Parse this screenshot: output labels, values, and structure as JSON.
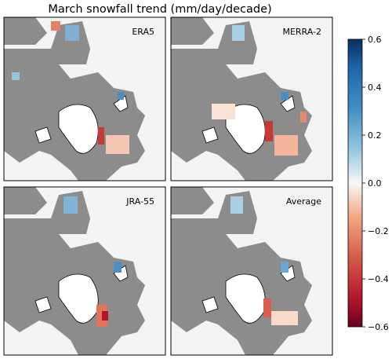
{
  "chart_data": {
    "type": "heatmap",
    "title": "March snowfall trend (mm/day/decade)",
    "panels": [
      {
        "label": "ERA5"
      },
      {
        "label": "MERRA-2"
      },
      {
        "label": "JRA-55"
      },
      {
        "label": "Average"
      }
    ],
    "colorbar": {
      "colormap": "RdBu",
      "vmin": -0.6,
      "vmax": 0.6,
      "ticks": [
        "0.6",
        "0.4",
        "0.2",
        "0.0",
        "−0.2",
        "−0.4",
        "−0.6"
      ]
    },
    "colors": {
      "land_mask": "#8c8c8c",
      "background": "#f2f4f4",
      "coast": "#000000"
    }
  }
}
